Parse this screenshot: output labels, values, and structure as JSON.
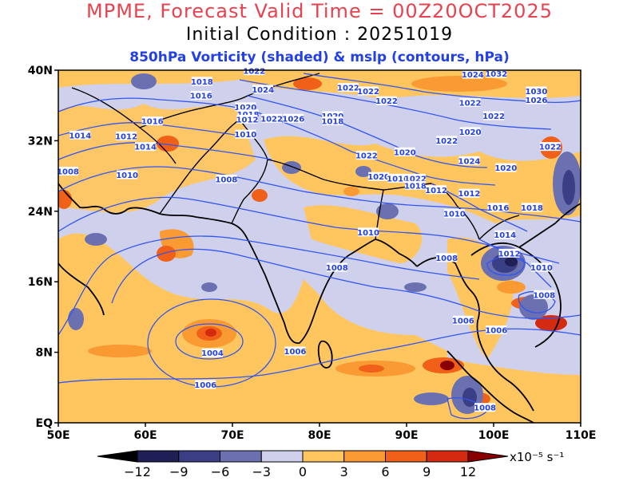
{
  "title_line1": "MPME, Forecast Valid Time = 00Z20OCT2025",
  "title_line2": "Initial Condition : 20251019",
  "title_line3": "850hPa Vorticity (shaded)  &     mslp (contours, hPa)",
  "colors": {
    "title_red": "#e8424f",
    "subtitle_blue": "#2340e8",
    "contour_blue": "#3355ee",
    "coast": "#000000"
  },
  "lat_ticks": [
    "40N",
    "32N",
    "24N",
    "16N",
    "8N",
    "EQ"
  ],
  "lon_ticks": [
    "50E",
    "60E",
    "70E",
    "80E",
    "90E",
    "100E",
    "110E"
  ],
  "colorbar": {
    "labels": [
      "−12",
      "−9",
      "−6",
      "−3",
      "0",
      "3",
      "6",
      "9",
      "12"
    ],
    "unit": "x10⁻⁵ s⁻¹",
    "colors": [
      "#000000",
      "#1f1f55",
      "#3a3f85",
      "#6a70b0",
      "#cfd0ec",
      "#ffc660",
      "#fa9a33",
      "#f06018",
      "#d42a10",
      "#880000"
    ]
  },
  "contour_labels": [
    {
      "text": "1022",
      "lon": 72.5,
      "lat": 39.9
    },
    {
      "text": "1018",
      "lon": 66.5,
      "lat": 38.7
    },
    {
      "text": "1016",
      "lon": 66.4,
      "lat": 37.1
    },
    {
      "text": "1024",
      "lon": 73.5,
      "lat": 37.8
    },
    {
      "text": "1020",
      "lon": 71.5,
      "lat": 35.8
    },
    {
      "text": "1018",
      "lon": 71.8,
      "lat": 35.0
    },
    {
      "text": "1012",
      "lon": 71.7,
      "lat": 34.4
    },
    {
      "text": "1022",
      "lon": 74.5,
      "lat": 34.5
    },
    {
      "text": "1026",
      "lon": 77.0,
      "lat": 34.5
    },
    {
      "text": "1020",
      "lon": 81.5,
      "lat": 34.8
    },
    {
      "text": "1018",
      "lon": 81.5,
      "lat": 34.2
    },
    {
      "text": "1016",
      "lon": 60.8,
      "lat": 34.2
    },
    {
      "text": "1014",
      "lon": 52.5,
      "lat": 32.6
    },
    {
      "text": "1012",
      "lon": 57.8,
      "lat": 32.5
    },
    {
      "text": "1014",
      "lon": 60.0,
      "lat": 31.3
    },
    {
      "text": "1010",
      "lon": 71.5,
      "lat": 32.7
    },
    {
      "text": "1008",
      "lon": 51.1,
      "lat": 28.5
    },
    {
      "text": "1010",
      "lon": 57.9,
      "lat": 28.1
    },
    {
      "text": "1008",
      "lon": 69.3,
      "lat": 27.6
    },
    {
      "text": "1022",
      "lon": 83.3,
      "lat": 38.0
    },
    {
      "text": "1022",
      "lon": 85.6,
      "lat": 37.6
    },
    {
      "text": "1022",
      "lon": 87.7,
      "lat": 36.5
    },
    {
      "text": "1024",
      "lon": 97.6,
      "lat": 39.5
    },
    {
      "text": "1032",
      "lon": 100.3,
      "lat": 39.6
    },
    {
      "text": "1030",
      "lon": 104.9,
      "lat": 37.6
    },
    {
      "text": "1026",
      "lon": 104.9,
      "lat": 36.6
    },
    {
      "text": "1022",
      "lon": 97.3,
      "lat": 36.3
    },
    {
      "text": "1022",
      "lon": 100.0,
      "lat": 34.8
    },
    {
      "text": "1020",
      "lon": 97.3,
      "lat": 33.0
    },
    {
      "text": "1022",
      "lon": 94.6,
      "lat": 32.0
    },
    {
      "text": "1022",
      "lon": 106.5,
      "lat": 31.3
    },
    {
      "text": "1020",
      "lon": 89.8,
      "lat": 30.7
    },
    {
      "text": "1022",
      "lon": 85.4,
      "lat": 30.3
    },
    {
      "text": "1024",
      "lon": 97.2,
      "lat": 29.7
    },
    {
      "text": "1020",
      "lon": 101.4,
      "lat": 28.9
    },
    {
      "text": "1020",
      "lon": 86.8,
      "lat": 27.9
    },
    {
      "text": "1016",
      "lon": 89.0,
      "lat": 27.7
    },
    {
      "text": "1022",
      "lon": 91.0,
      "lat": 27.7
    },
    {
      "text": "1018",
      "lon": 91.0,
      "lat": 26.9
    },
    {
      "text": "1012",
      "lon": 93.4,
      "lat": 26.4
    },
    {
      "text": "1012",
      "lon": 97.2,
      "lat": 26.0
    },
    {
      "text": "1010",
      "lon": 95.5,
      "lat": 23.7
    },
    {
      "text": "1016",
      "lon": 100.5,
      "lat": 24.4
    },
    {
      "text": "1018",
      "lon": 104.4,
      "lat": 24.4
    },
    {
      "text": "1010",
      "lon": 85.6,
      "lat": 21.6
    },
    {
      "text": "1014",
      "lon": 101.3,
      "lat": 21.3
    },
    {
      "text": "1012",
      "lon": 101.8,
      "lat": 19.2
    },
    {
      "text": "1008",
      "lon": 94.6,
      "lat": 18.7
    },
    {
      "text": "1010",
      "lon": 105.5,
      "lat": 17.6
    },
    {
      "text": "1008",
      "lon": 82.0,
      "lat": 17.6
    },
    {
      "text": "1008",
      "lon": 105.8,
      "lat": 14.5
    },
    {
      "text": "1006",
      "lon": 96.5,
      "lat": 11.6
    },
    {
      "text": "1006",
      "lon": 100.3,
      "lat": 10.5
    },
    {
      "text": "1004",
      "lon": 67.7,
      "lat": 7.9
    },
    {
      "text": "1006",
      "lon": 77.2,
      "lat": 8.1
    },
    {
      "text": "1006",
      "lon": 66.9,
      "lat": 4.3
    },
    {
      "text": "1008",
      "lon": 99.0,
      "lat": 1.7
    }
  ]
}
